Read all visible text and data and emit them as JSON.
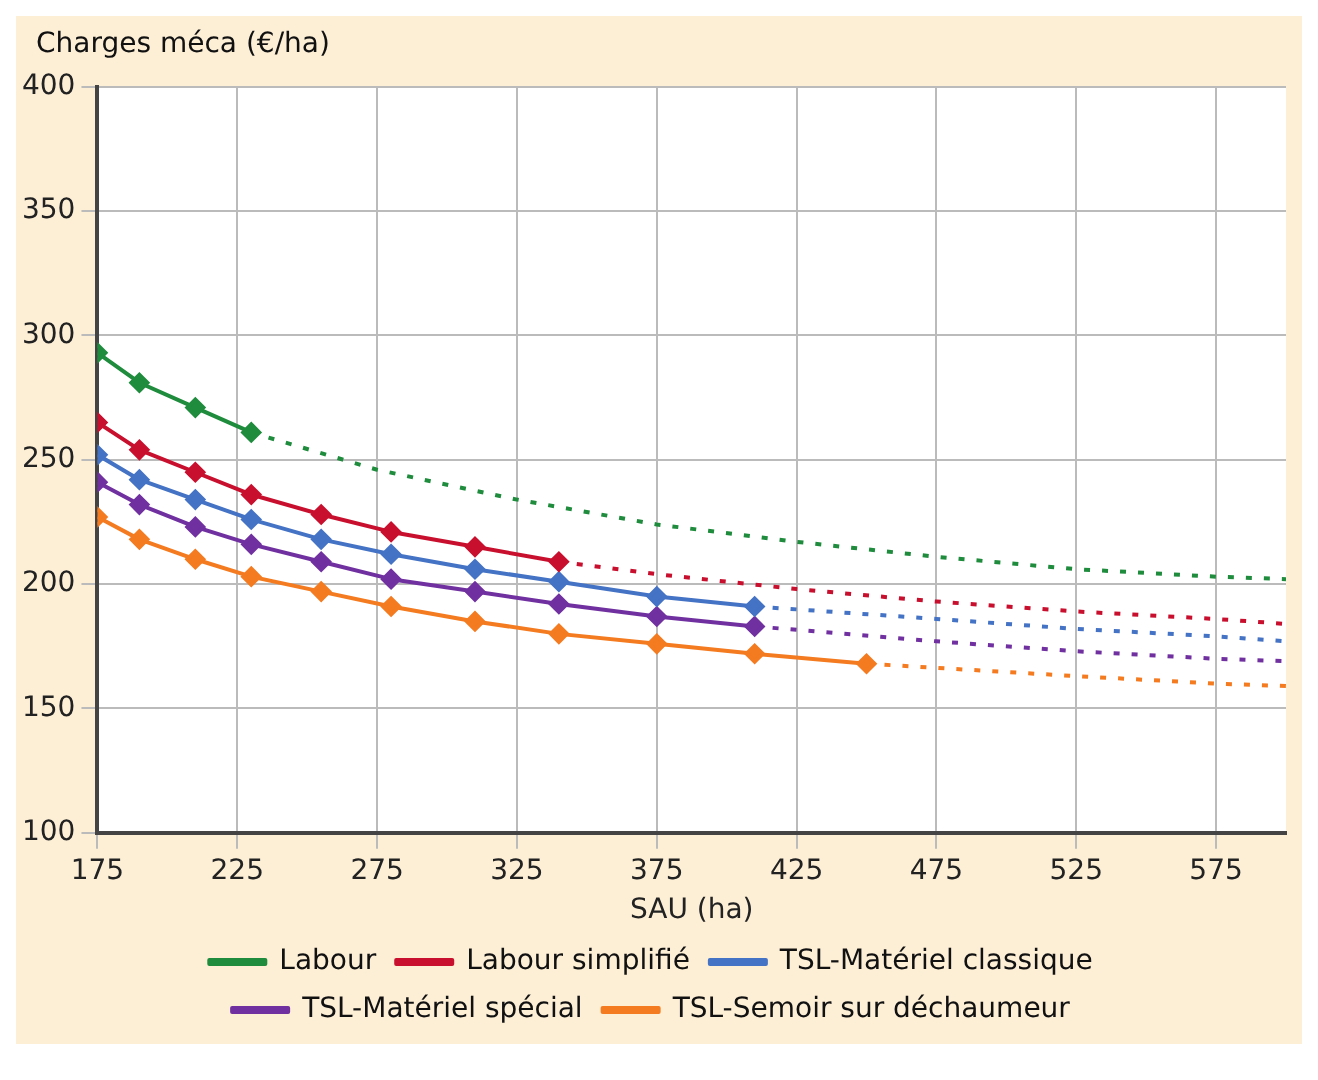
{
  "chart_data": {
    "type": "line",
    "ylabel": "Charges méca (€/ha)",
    "xlabel": "SAU (ha)",
    "xlim": [
      175,
      600
    ],
    "xticks": [
      175,
      225,
      275,
      325,
      375,
      425,
      475,
      525,
      575
    ],
    "ylim": [
      100,
      400
    ],
    "yticks": [
      100,
      150,
      200,
      250,
      300,
      350,
      400
    ],
    "grid": true,
    "legend": "bottom",
    "marker": "diamond",
    "line_style": "solid",
    "series": [
      {
        "name": "Labour",
        "color": "#1e8c3c",
        "x": [
          175,
          190,
          210,
          230
        ],
        "values": [
          293,
          281,
          271,
          261
        ]
      },
      {
        "name": "Labour simplifié",
        "color": "#c8102e",
        "x": [
          175,
          190,
          210,
          230,
          255,
          280,
          310,
          340
        ],
        "values": [
          265,
          254,
          245,
          236,
          228,
          221,
          215,
          209
        ]
      },
      {
        "name": "TSL-Matériel classique",
        "color": "#4472c4",
        "x": [
          175,
          190,
          210,
          230,
          255,
          280,
          310,
          340,
          375,
          410
        ],
        "values": [
          252,
          242,
          234,
          226,
          218,
          212,
          206,
          201,
          195,
          191
        ]
      },
      {
        "name": "TSL-Matériel spécial",
        "color": "#7030a0",
        "x": [
          175,
          190,
          210,
          230,
          255,
          280,
          310,
          340,
          375,
          410
        ],
        "values": [
          241,
          232,
          223,
          216,
          209,
          202,
          197,
          192,
          187,
          183
        ]
      },
      {
        "name": "TSL-Semoir sur déchaumeur",
        "color": "#f47b20",
        "x": [
          175,
          190,
          210,
          230,
          255,
          280,
          310,
          340,
          375,
          410,
          450
        ],
        "values": [
          227,
          218,
          210,
          203,
          197,
          191,
          185,
          180,
          176,
          172,
          168
        ]
      },
      {
        "color": "#1e8c3c",
        "line_style": "dotted",
        "marker": "none",
        "x": [
          230,
          275,
          325,
          375,
          425,
          475,
          525,
          575,
          600
        ],
        "values": [
          261,
          246,
          234,
          224,
          217,
          211,
          206,
          203,
          202
        ]
      },
      {
        "color": "#c8102e",
        "line_style": "dotted",
        "marker": "none",
        "x": [
          340,
          375,
          425,
          475,
          525,
          575,
          600
        ],
        "values": [
          209,
          204,
          198,
          193,
          189,
          186,
          184
        ]
      },
      {
        "color": "#4472c4",
        "line_style": "dotted",
        "marker": "none",
        "x": [
          410,
          475,
          525,
          575,
          600
        ],
        "values": [
          191,
          186,
          182,
          179,
          177
        ]
      },
      {
        "color": "#7030a0",
        "line_style": "dotted",
        "marker": "none",
        "x": [
          410,
          475,
          525,
          575,
          600
        ],
        "values": [
          183,
          177,
          173,
          170,
          169
        ]
      },
      {
        "color": "#f47b20",
        "line_style": "dotted",
        "marker": "none",
        "x": [
          450,
          525,
          575,
          600
        ],
        "values": [
          168,
          163,
          160,
          159
        ]
      }
    ]
  }
}
